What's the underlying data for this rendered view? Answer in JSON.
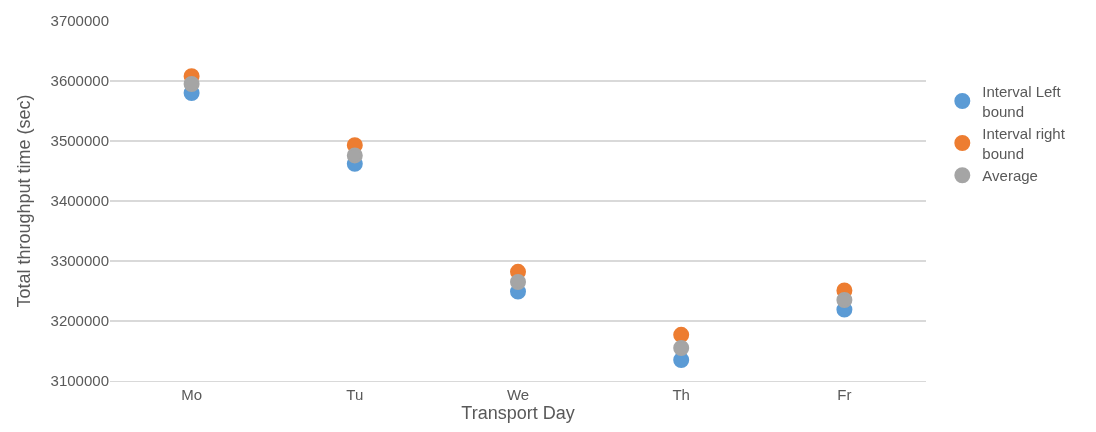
{
  "chart_data": {
    "type": "scatter",
    "xlabel": "Transport Day",
    "ylabel": "Total throughput time (sec)",
    "categories": [
      "Mo",
      "Tu",
      "We",
      "Th",
      "Fr"
    ],
    "series": [
      {
        "name": "Interval Left bound",
        "color": "#5b9bd5",
        "values": [
          3580000,
          3462000,
          3249000,
          3135000,
          3219000
        ]
      },
      {
        "name": "Interval right bound",
        "color": "#ed7d31",
        "values": [
          3608000,
          3493000,
          3282000,
          3177000,
          3251000
        ]
      },
      {
        "name": "Average",
        "color": "#a5a5a5",
        "values": [
          3595000,
          3476000,
          3265000,
          3155000,
          3235000
        ]
      }
    ],
    "ylim": [
      3100000,
      3700000
    ],
    "yticks": [
      3100000,
      3200000,
      3300000,
      3400000,
      3500000,
      3600000,
      3700000
    ],
    "grid": "y",
    "legend": "right",
    "marker": "circle"
  }
}
